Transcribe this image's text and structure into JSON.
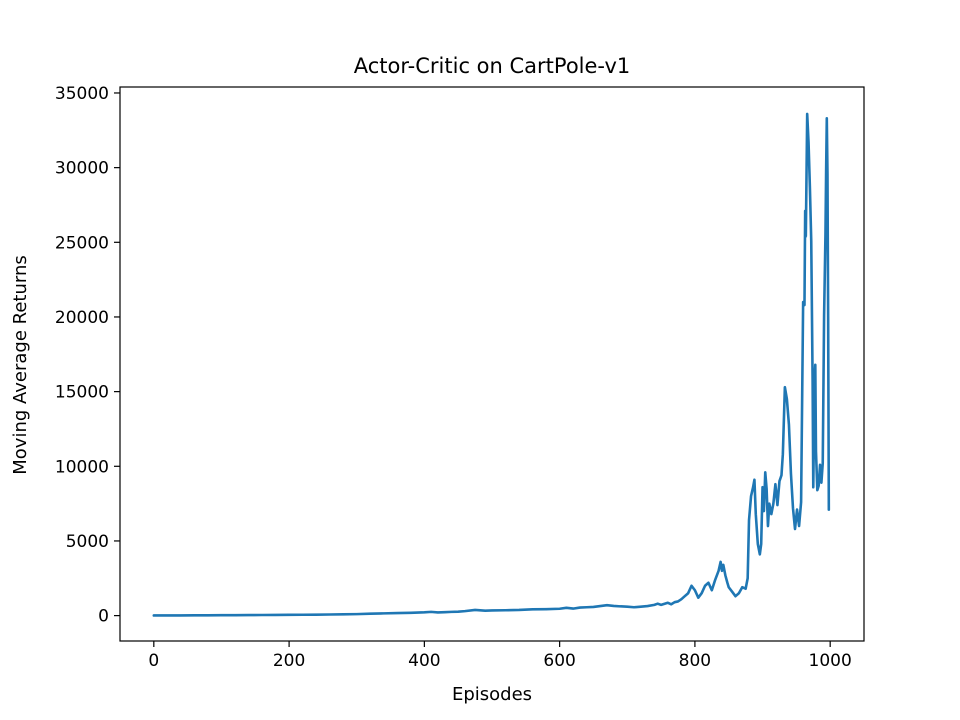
{
  "chart_data": {
    "type": "line",
    "title": "Actor-Critic on CartPole-v1",
    "xlabel": "Episodes",
    "ylabel": "Moving Average Returns",
    "xlim": [
      -50,
      1050
    ],
    "ylim": [
      -1700,
      35400
    ],
    "xticks": [
      0,
      200,
      400,
      600,
      800,
      1000
    ],
    "yticks": [
      0,
      5000,
      10000,
      15000,
      20000,
      25000,
      30000,
      35000
    ],
    "grid": false,
    "legend": "none",
    "series": [
      {
        "color": "#1f77b4",
        "points": [
          [
            0,
            10
          ],
          [
            20,
            12
          ],
          [
            40,
            15
          ],
          [
            60,
            18
          ],
          [
            80,
            22
          ],
          [
            100,
            28
          ],
          [
            120,
            32
          ],
          [
            140,
            38
          ],
          [
            160,
            42
          ],
          [
            180,
            48
          ],
          [
            200,
            55
          ],
          [
            220,
            58
          ],
          [
            240,
            62
          ],
          [
            260,
            75
          ],
          [
            280,
            85
          ],
          [
            300,
            100
          ],
          [
            320,
            130
          ],
          [
            340,
            150
          ],
          [
            360,
            170
          ],
          [
            380,
            190
          ],
          [
            400,
            220
          ],
          [
            410,
            250
          ],
          [
            420,
            210
          ],
          [
            430,
            230
          ],
          [
            440,
            250
          ],
          [
            450,
            260
          ],
          [
            460,
            300
          ],
          [
            475,
            380
          ],
          [
            490,
            330
          ],
          [
            500,
            350
          ],
          [
            520,
            360
          ],
          [
            540,
            380
          ],
          [
            560,
            420
          ],
          [
            580,
            430
          ],
          [
            600,
            460
          ],
          [
            610,
            520
          ],
          [
            620,
            470
          ],
          [
            630,
            540
          ],
          [
            640,
            560
          ],
          [
            650,
            580
          ],
          [
            660,
            640
          ],
          [
            670,
            700
          ],
          [
            680,
            650
          ],
          [
            690,
            620
          ],
          [
            700,
            600
          ],
          [
            710,
            560
          ],
          [
            720,
            600
          ],
          [
            730,
            640
          ],
          [
            740,
            720
          ],
          [
            745,
            800
          ],
          [
            750,
            720
          ],
          [
            760,
            860
          ],
          [
            765,
            760
          ],
          [
            770,
            900
          ],
          [
            775,
            950
          ],
          [
            780,
            1100
          ],
          [
            785,
            1300
          ],
          [
            790,
            1500
          ],
          [
            795,
            2000
          ],
          [
            800,
            1700
          ],
          [
            805,
            1200
          ],
          [
            810,
            1500
          ],
          [
            815,
            2000
          ],
          [
            820,
            2200
          ],
          [
            825,
            1700
          ],
          [
            830,
            2400
          ],
          [
            835,
            3000
          ],
          [
            838,
            3600
          ],
          [
            840,
            3000
          ],
          [
            842,
            3400
          ],
          [
            845,
            2700
          ],
          [
            848,
            2200
          ],
          [
            850,
            1900
          ],
          [
            855,
            1600
          ],
          [
            860,
            1300
          ],
          [
            865,
            1500
          ],
          [
            870,
            1900
          ],
          [
            875,
            1800
          ],
          [
            878,
            2500
          ],
          [
            880,
            6400
          ],
          [
            883,
            8000
          ],
          [
            886,
            8600
          ],
          [
            888,
            9100
          ],
          [
            890,
            6800
          ],
          [
            893,
            4800
          ],
          [
            896,
            4100
          ],
          [
            898,
            4800
          ],
          [
            900,
            8600
          ],
          [
            902,
            7000
          ],
          [
            904,
            9600
          ],
          [
            906,
            8500
          ],
          [
            908,
            6000
          ],
          [
            910,
            7500
          ],
          [
            913,
            6800
          ],
          [
            916,
            7500
          ],
          [
            919,
            8800
          ],
          [
            922,
            7400
          ],
          [
            925,
            9000
          ],
          [
            928,
            9400
          ],
          [
            930,
            10800
          ],
          [
            933,
            15300
          ],
          [
            936,
            14500
          ],
          [
            939,
            12800
          ],
          [
            942,
            9500
          ],
          [
            945,
            7200
          ],
          [
            948,
            5800
          ],
          [
            951,
            7100
          ],
          [
            954,
            6000
          ],
          [
            957,
            7600
          ],
          [
            960,
            21000
          ],
          [
            962,
            20800
          ],
          [
            963,
            27100
          ],
          [
            964,
            25400
          ],
          [
            966,
            33600
          ],
          [
            968,
            31700
          ],
          [
            970,
            28700
          ],
          [
            972,
            25100
          ],
          [
            974,
            15800
          ],
          [
            975,
            8600
          ],
          [
            977,
            15900
          ],
          [
            978,
            16800
          ],
          [
            979,
            11000
          ],
          [
            981,
            8400
          ],
          [
            983,
            8700
          ],
          [
            985,
            10100
          ],
          [
            987,
            8900
          ],
          [
            989,
            10200
          ],
          [
            991,
            20100
          ],
          [
            993,
            25500
          ],
          [
            994,
            29800
          ],
          [
            995,
            33300
          ],
          [
            996,
            29600
          ],
          [
            997,
            20000
          ],
          [
            998,
            7100
          ]
        ]
      }
    ]
  }
}
